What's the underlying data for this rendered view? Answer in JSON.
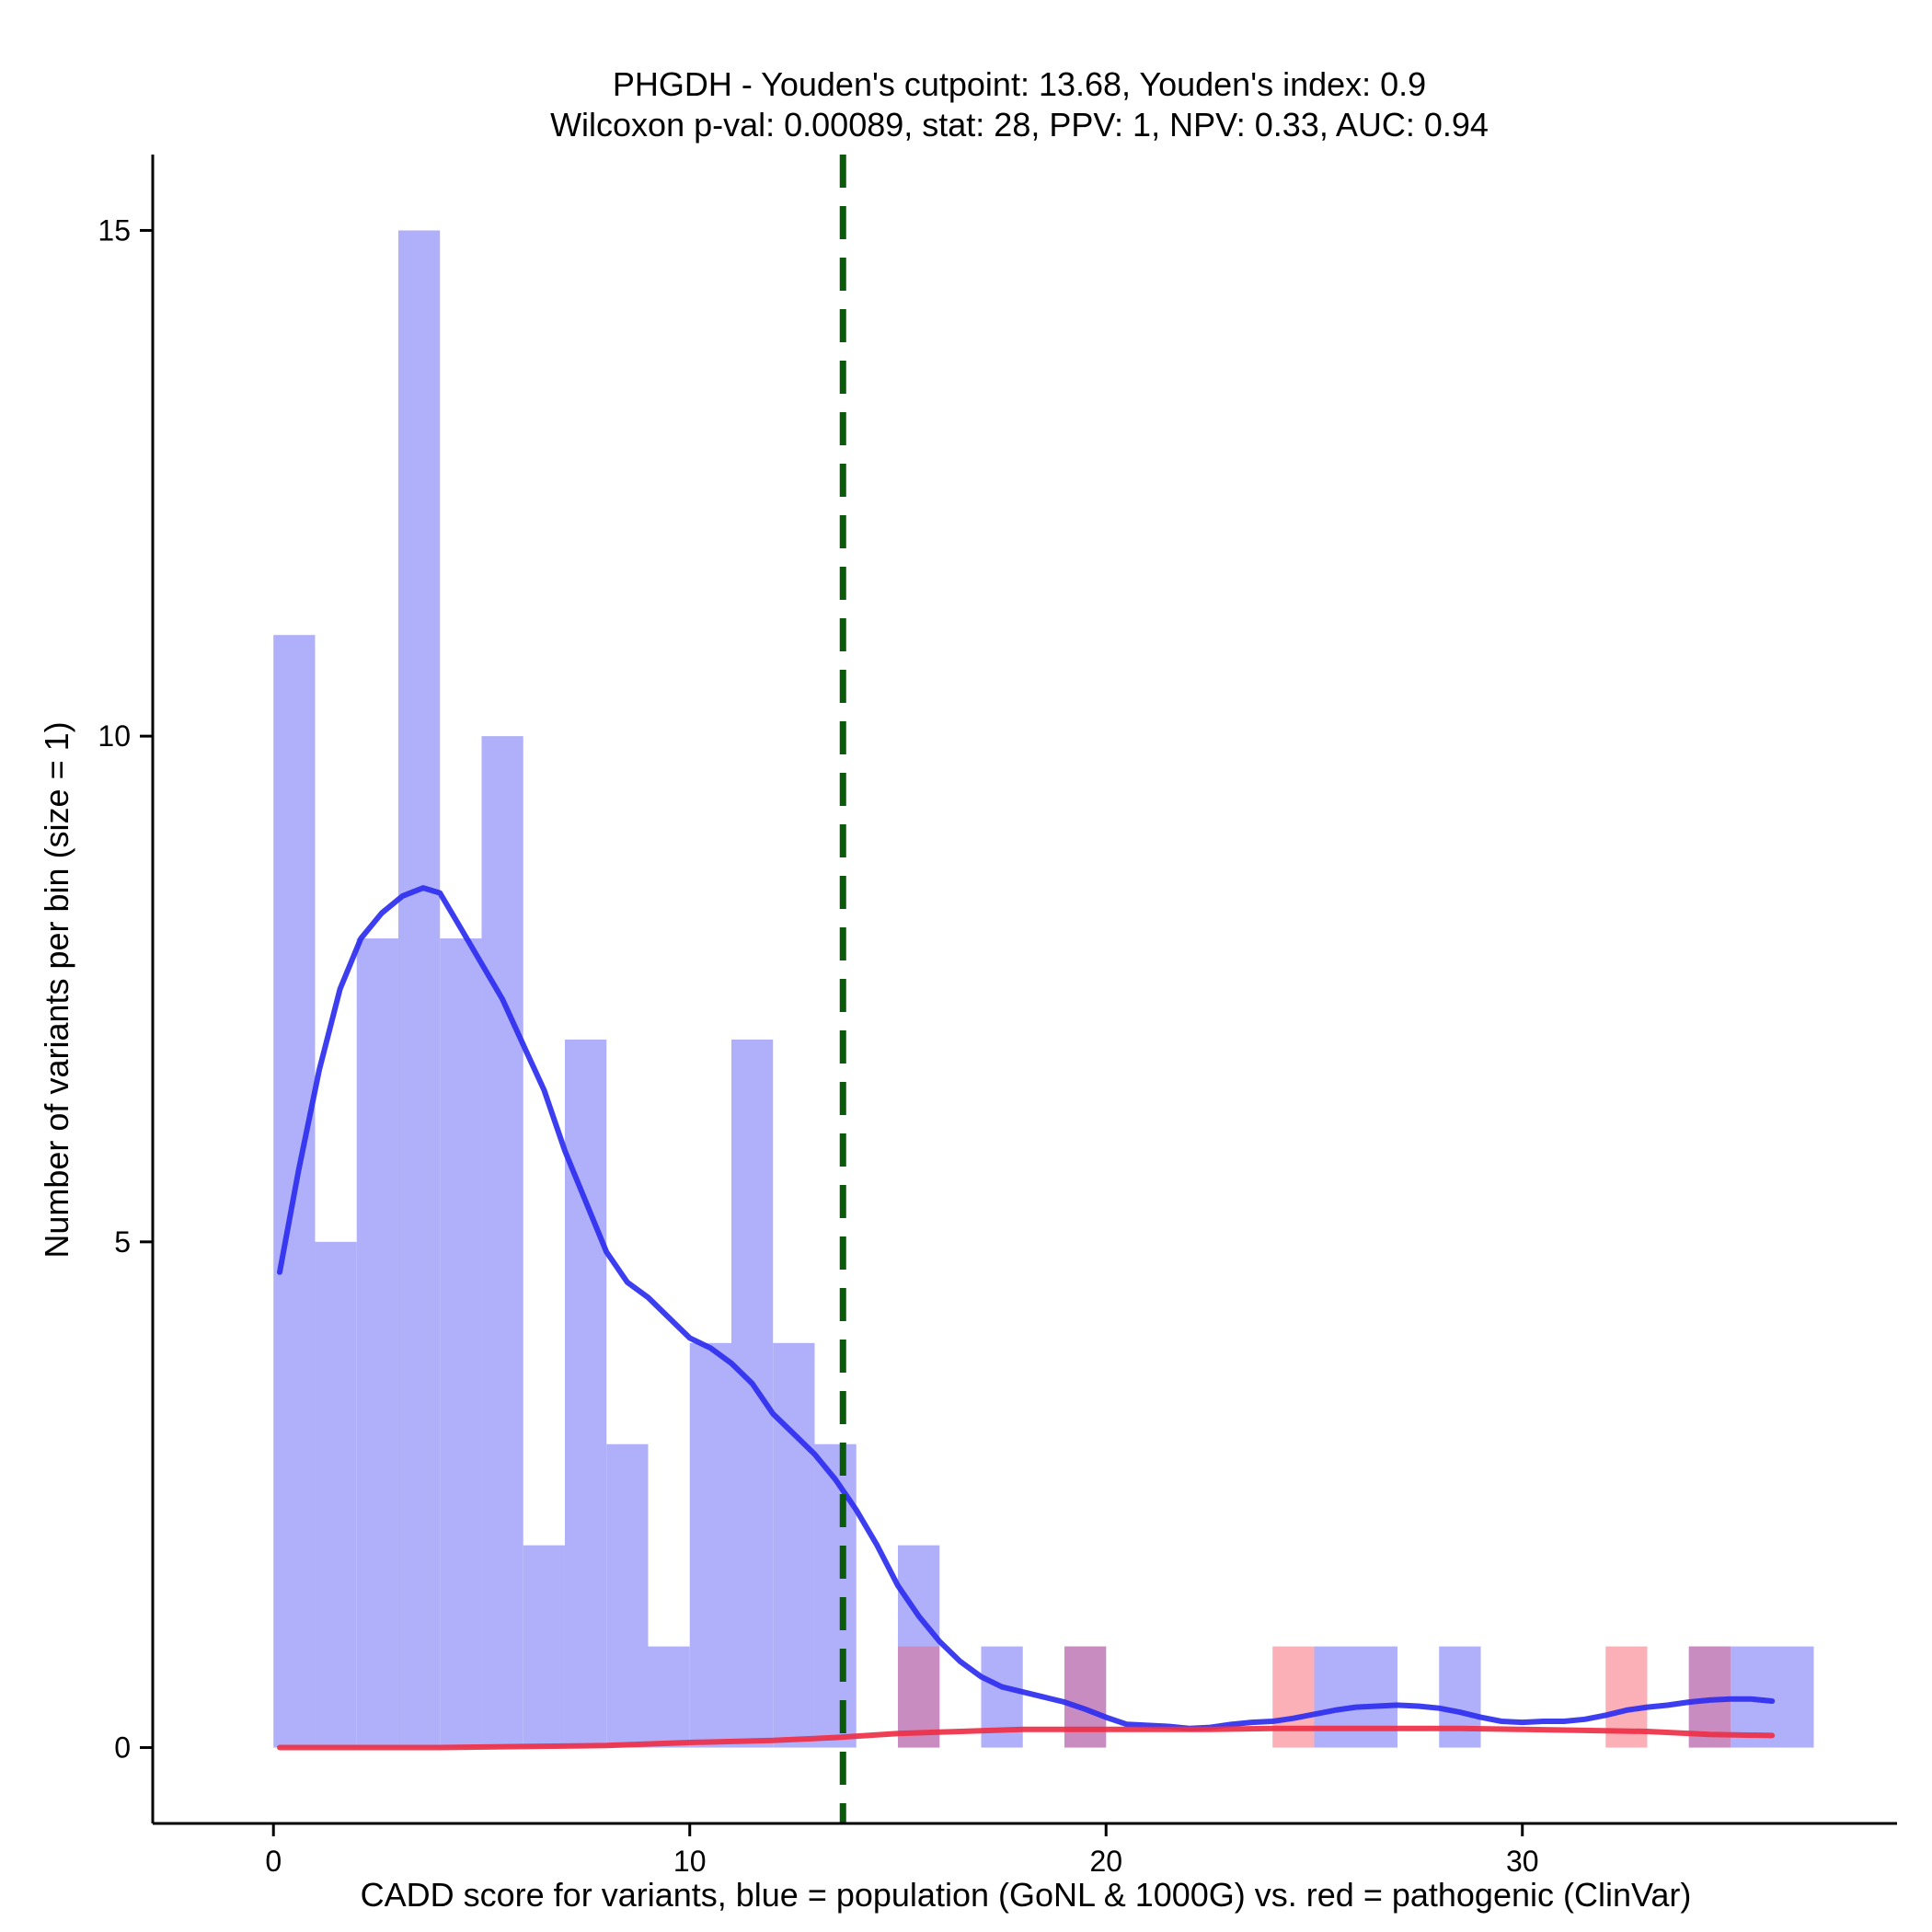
{
  "chart_data": {
    "type": "bar",
    "title": "PHGDH - Youden's cutpoint: 13.68, Youden's index: 0.9",
    "subtitle": "Wilcoxon p-val: 0.00089, stat: 28, PPV: 1, NPV: 0.33, AUC: 0.94",
    "xlabel": "CADD score for variants, blue = population (GoNL & 1000G) vs. red = pathogenic (ClinVar)",
    "ylabel": "Number of variants per bin (size = 1)",
    "xlim": [
      -2.9,
      39.0
    ],
    "ylim": [
      -0.75,
      15.75
    ],
    "x_ticks": [
      0,
      10,
      20,
      30
    ],
    "y_ticks": [
      0,
      5,
      10,
      15
    ],
    "cutpoint": 13.68,
    "colors": {
      "population_bar": "#b0b0fa",
      "pathogenic_bar": "#fbb0b8",
      "overlap_bar": "#c88cc0",
      "population_line": "#2e2ef0",
      "pathogenic_line": "#ee2f45",
      "cutpoint_line": "#0b5a0b",
      "axis": "#000000"
    },
    "series": [
      {
        "name": "population",
        "bins": [
          {
            "x0": 0,
            "x1": 1,
            "count": 11
          },
          {
            "x0": 1,
            "x1": 2,
            "count": 5
          },
          {
            "x0": 2,
            "x1": 3,
            "count": 8
          },
          {
            "x0": 3,
            "x1": 4,
            "count": 15
          },
          {
            "x0": 4,
            "x1": 5,
            "count": 8
          },
          {
            "x0": 5,
            "x1": 6,
            "count": 10
          },
          {
            "x0": 6,
            "x1": 7,
            "count": 2
          },
          {
            "x0": 7,
            "x1": 8,
            "count": 7
          },
          {
            "x0": 8,
            "x1": 9,
            "count": 3
          },
          {
            "x0": 9,
            "x1": 10,
            "count": 1
          },
          {
            "x0": 10,
            "x1": 11,
            "count": 4
          },
          {
            "x0": 11,
            "x1": 12,
            "count": 7
          },
          {
            "x0": 12,
            "x1": 13,
            "count": 4
          },
          {
            "x0": 13,
            "x1": 14,
            "count": 3
          },
          {
            "x0": 15,
            "x1": 16,
            "count": 2
          },
          {
            "x0": 17,
            "x1": 18,
            "count": 1
          },
          {
            "x0": 19,
            "x1": 20,
            "count": 1
          },
          {
            "x0": 25,
            "x1": 27,
            "count": 1
          },
          {
            "x0": 28,
            "x1": 29,
            "count": 1
          },
          {
            "x0": 34,
            "x1": 37,
            "count": 1
          }
        ]
      },
      {
        "name": "pathogenic",
        "bins": [
          {
            "x0": 15,
            "x1": 16,
            "count": 1
          },
          {
            "x0": 19,
            "x1": 20,
            "count": 1
          },
          {
            "x0": 24,
            "x1": 25,
            "count": 1
          },
          {
            "x0": 32,
            "x1": 33,
            "count": 1
          },
          {
            "x0": 34,
            "x1": 35,
            "count": 1
          }
        ]
      }
    ],
    "density_lines": [
      {
        "name": "population",
        "points": [
          [
            0.15,
            4.7
          ],
          [
            0.6,
            5.7
          ],
          [
            1.1,
            6.7
          ],
          [
            1.6,
            7.5
          ],
          [
            2.1,
            8.0
          ],
          [
            2.6,
            8.25
          ],
          [
            3.1,
            8.42
          ],
          [
            3.6,
            8.5
          ],
          [
            4.0,
            8.45
          ],
          [
            4.5,
            8.1
          ],
          [
            5.0,
            7.75
          ],
          [
            5.5,
            7.4
          ],
          [
            6.0,
            6.95
          ],
          [
            6.5,
            6.5
          ],
          [
            7.0,
            5.9
          ],
          [
            7.5,
            5.4
          ],
          [
            8.0,
            4.9
          ],
          [
            8.5,
            4.6
          ],
          [
            9.0,
            4.45
          ],
          [
            9.5,
            4.25
          ],
          [
            10.0,
            4.05
          ],
          [
            10.5,
            3.95
          ],
          [
            11.0,
            3.8
          ],
          [
            11.5,
            3.6
          ],
          [
            12.0,
            3.3
          ],
          [
            12.5,
            3.1
          ],
          [
            13.0,
            2.9
          ],
          [
            13.5,
            2.65
          ],
          [
            14.0,
            2.35
          ],
          [
            14.5,
            2.0
          ],
          [
            15.0,
            1.6
          ],
          [
            15.5,
            1.3
          ],
          [
            16.0,
            1.05
          ],
          [
            16.5,
            0.85
          ],
          [
            17.0,
            0.7
          ],
          [
            17.5,
            0.6
          ],
          [
            18.0,
            0.55
          ],
          [
            18.5,
            0.5
          ],
          [
            19.0,
            0.45
          ],
          [
            19.5,
            0.38
          ],
          [
            20.0,
            0.3
          ],
          [
            20.5,
            0.23
          ],
          [
            21.0,
            0.22
          ],
          [
            21.5,
            0.21
          ],
          [
            22.0,
            0.19
          ],
          [
            22.5,
            0.2
          ],
          [
            23.0,
            0.23
          ],
          [
            23.5,
            0.25
          ],
          [
            24.0,
            0.26
          ],
          [
            24.5,
            0.29
          ],
          [
            25.0,
            0.33
          ],
          [
            25.5,
            0.37
          ],
          [
            26.0,
            0.4
          ],
          [
            26.5,
            0.41
          ],
          [
            27.0,
            0.42
          ],
          [
            27.5,
            0.41
          ],
          [
            28.0,
            0.39
          ],
          [
            28.5,
            0.35
          ],
          [
            29.0,
            0.3
          ],
          [
            29.5,
            0.26
          ],
          [
            30.0,
            0.25
          ],
          [
            30.5,
            0.26
          ],
          [
            31.0,
            0.26
          ],
          [
            31.5,
            0.28
          ],
          [
            32.0,
            0.32
          ],
          [
            32.5,
            0.37
          ],
          [
            33.0,
            0.4
          ],
          [
            33.5,
            0.42
          ],
          [
            34.0,
            0.45
          ],
          [
            34.5,
            0.47
          ],
          [
            35.0,
            0.48
          ],
          [
            35.5,
            0.48
          ],
          [
            36.0,
            0.46
          ]
        ]
      },
      {
        "name": "pathogenic",
        "points": [
          [
            0.15,
            0.0
          ],
          [
            2.0,
            0.0
          ],
          [
            4.0,
            0.0
          ],
          [
            6.0,
            0.01
          ],
          [
            8.0,
            0.02
          ],
          [
            10.0,
            0.05
          ],
          [
            12.0,
            0.07
          ],
          [
            13.5,
            0.1
          ],
          [
            15.0,
            0.14
          ],
          [
            16.5,
            0.16
          ],
          [
            18.0,
            0.18
          ],
          [
            19.5,
            0.18
          ],
          [
            21.0,
            0.18
          ],
          [
            22.5,
            0.18
          ],
          [
            24.0,
            0.19
          ],
          [
            25.5,
            0.19
          ],
          [
            27.0,
            0.19
          ],
          [
            28.5,
            0.19
          ],
          [
            30.0,
            0.18
          ],
          [
            31.5,
            0.17
          ],
          [
            33.0,
            0.16
          ],
          [
            34.5,
            0.13
          ],
          [
            36.0,
            0.12
          ]
        ]
      }
    ]
  }
}
